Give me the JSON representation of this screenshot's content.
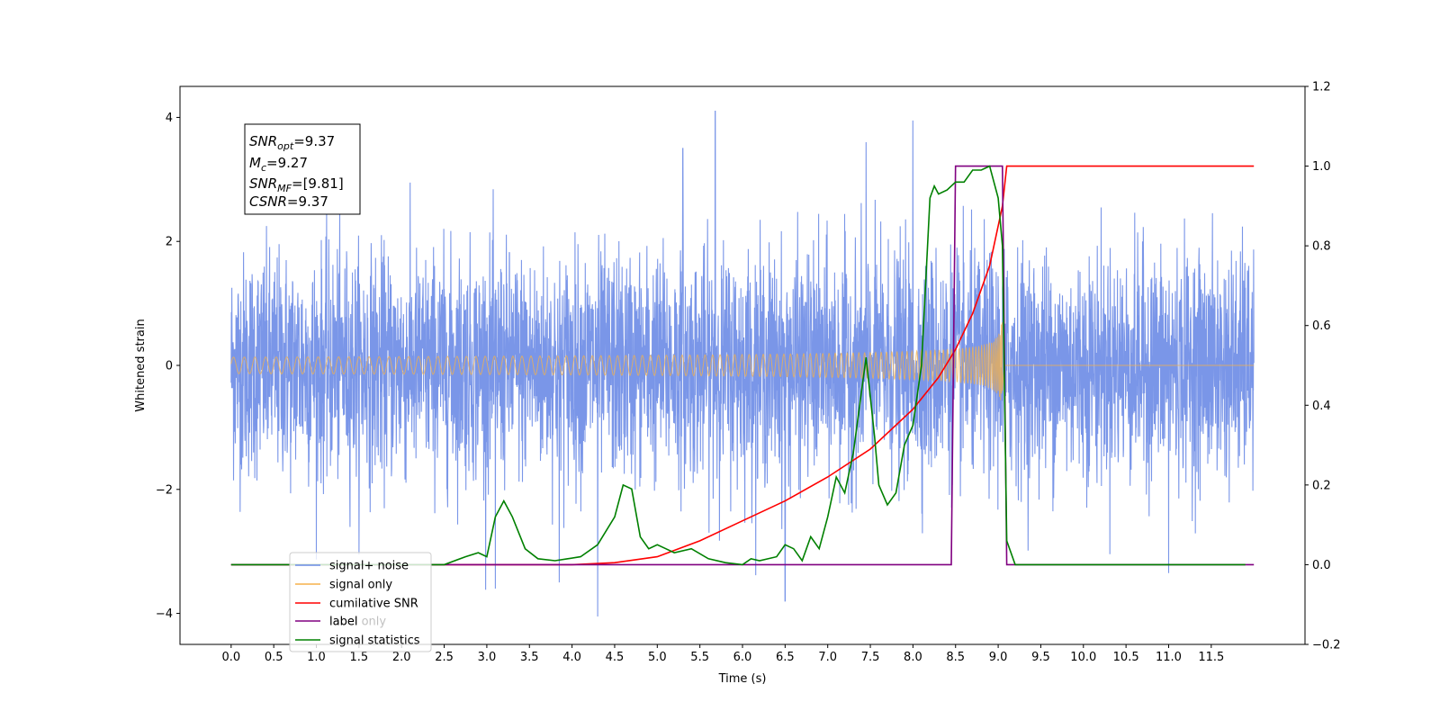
{
  "chart_data": {
    "type": "line",
    "title": "",
    "xlabel": "Time (s)",
    "ylabel": "Whitened strain",
    "ylabel_right": "",
    "xlim": [
      -0.6,
      12.6
    ],
    "ylim": [
      -4.5,
      4.5
    ],
    "ylim_right": [
      -0.2,
      1.2
    ],
    "x_ticks": [
      "0.0",
      "0.5",
      "1.0",
      "1.5",
      "2.0",
      "2.5",
      "3.0",
      "3.5",
      "4.0",
      "4.5",
      "5.0",
      "5.5",
      "6.0",
      "6.5",
      "7.0",
      "7.5",
      "8.0",
      "8.5",
      "9.0",
      "9.5",
      "10.0",
      "10.5",
      "11.0",
      "11.5"
    ],
    "y_ticks_left": [
      "4",
      "2",
      "0",
      "−2",
      "−4"
    ],
    "y_ticks_left_values": [
      4,
      2,
      0,
      -2,
      -4
    ],
    "y_ticks_right": [
      "1.2",
      "1.0",
      "0.8",
      "0.6",
      "0.4",
      "0.2",
      "0.0",
      "−0.2"
    ],
    "y_ticks_right_values": [
      1.2,
      1.0,
      0.8,
      0.6,
      0.4,
      0.2,
      0.0,
      -0.2
    ],
    "grid": false,
    "legend_position": "lower-left",
    "colors": {
      "noise": "#6b8be6",
      "signal": "#f5b14a",
      "cumulative_snr": "#ff0000",
      "label": "#800080",
      "statistics": "#008000"
    },
    "annotation": {
      "snr_opt_main": "SNR",
      "snr_opt_sub": "opt",
      "snr_opt_value": "=9.37",
      "mc_main": "M",
      "mc_sub": "c",
      "mc_value": "=9.27",
      "snr_mf_main": "SNR",
      "snr_mf_sub": "MF",
      "snr_mf_value": "=[9.81]",
      "csnr_main": "CSNR",
      "csnr_value": "=9.37"
    },
    "series": [
      {
        "name": "signal+ noise",
        "axis": "left",
        "kind": "noise",
        "x_range": [
          0.0,
          12.0
        ],
        "typical_envelope": [
          -2.5,
          2.5
        ],
        "peaks": [
          {
            "x": 5.68,
            "y": 4.1
          },
          {
            "x": 8.0,
            "y": 3.95
          },
          {
            "x": 7.45,
            "y": 3.6
          },
          {
            "x": 5.3,
            "y": 3.5
          },
          {
            "x": 3.1,
            "y": -3.6
          },
          {
            "x": 4.3,
            "y": -4.05
          },
          {
            "x": 6.5,
            "y": -3.8
          },
          {
            "x": 11.0,
            "y": -3.35
          },
          {
            "x": 3.85,
            "y": -3.5
          }
        ]
      },
      {
        "name": "signal only",
        "axis": "left",
        "kind": "chirp",
        "x_range": [
          0.0,
          9.05
        ],
        "peak_amplitude": 0.7
      },
      {
        "name": "cumilative SNR",
        "axis": "right",
        "x": [
          0.0,
          4.0,
          4.5,
          5.0,
          5.5,
          6.0,
          6.5,
          7.0,
          7.5,
          8.0,
          8.3,
          8.5,
          8.7,
          8.9,
          9.0,
          9.05,
          9.1,
          12.0
        ],
        "y": [
          0.0,
          0.0,
          0.005,
          0.02,
          0.06,
          0.11,
          0.16,
          0.22,
          0.29,
          0.39,
          0.47,
          0.54,
          0.63,
          0.75,
          0.85,
          0.9,
          1.0,
          1.0
        ]
      },
      {
        "name": "label",
        "axis": "right",
        "x": [
          0.0,
          8.45,
          8.5,
          9.05,
          9.1,
          12.0
        ],
        "y": [
          0.0,
          0.0,
          1.0,
          1.0,
          0.0,
          0.0
        ]
      },
      {
        "name": "label only",
        "axis": "right",
        "x": [],
        "y": []
      },
      {
        "name": "signal statistics",
        "axis": "right",
        "x": [
          0.0,
          2.5,
          2.75,
          2.9,
          3.0,
          3.1,
          3.2,
          3.3,
          3.45,
          3.6,
          3.8,
          3.95,
          4.1,
          4.3,
          4.5,
          4.6,
          4.7,
          4.8,
          4.9,
          5.0,
          5.1,
          5.2,
          5.4,
          5.6,
          5.8,
          6.0,
          6.1,
          6.2,
          6.4,
          6.5,
          6.6,
          6.7,
          6.8,
          6.9,
          7.0,
          7.1,
          7.2,
          7.3,
          7.45,
          7.55,
          7.6,
          7.7,
          7.8,
          7.9,
          8.0,
          8.1,
          8.2,
          8.25,
          8.3,
          8.4,
          8.5,
          8.6,
          8.7,
          8.8,
          8.9,
          9.0,
          9.05,
          9.1,
          9.2,
          11.9
        ],
        "y": [
          0.0,
          0.0,
          0.02,
          0.03,
          0.02,
          0.12,
          0.16,
          0.12,
          0.04,
          0.015,
          0.01,
          0.015,
          0.02,
          0.05,
          0.12,
          0.2,
          0.19,
          0.07,
          0.04,
          0.05,
          0.04,
          0.03,
          0.04,
          0.015,
          0.005,
          0.0,
          0.015,
          0.01,
          0.02,
          0.05,
          0.04,
          0.01,
          0.07,
          0.04,
          0.12,
          0.22,
          0.18,
          0.28,
          0.52,
          0.32,
          0.2,
          0.15,
          0.18,
          0.3,
          0.35,
          0.5,
          0.92,
          0.95,
          0.93,
          0.94,
          0.96,
          0.96,
          0.99,
          0.99,
          1.0,
          0.92,
          0.8,
          0.06,
          0.0,
          0.0
        ]
      }
    ]
  }
}
